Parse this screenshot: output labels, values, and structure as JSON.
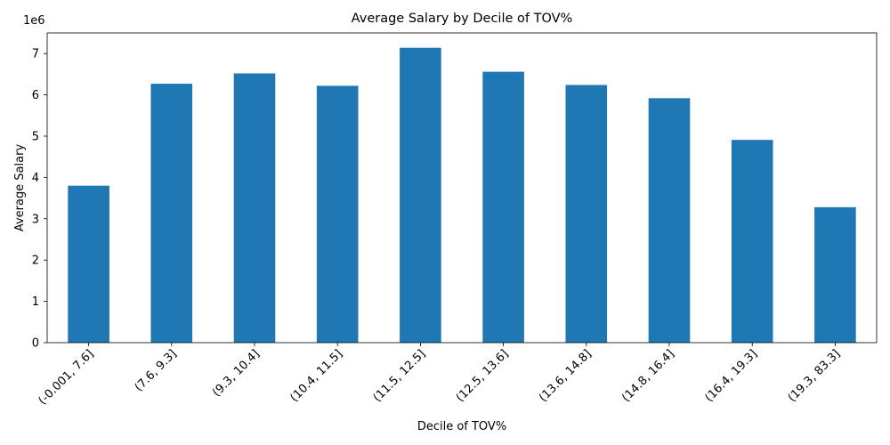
{
  "chart_data": {
    "type": "bar",
    "title": "Average Salary by Decile of TOV%",
    "xlabel": "Decile of TOV%",
    "ylabel": "Average Salary",
    "offset_label": "1e6",
    "categories": [
      "(-0.001, 7.6]",
      "(7.6, 9.3]",
      "(9.3, 10.4]",
      "(10.4, 11.5]",
      "(11.5, 12.5]",
      "(12.5, 13.6]",
      "(13.6, 14.8]",
      "(14.8, 16.4]",
      "(16.4, 19.3]",
      "(19.3, 83.3]"
    ],
    "values": [
      3800000,
      6270000,
      6520000,
      6220000,
      7140000,
      6560000,
      6240000,
      5920000,
      4910000,
      3280000
    ],
    "ylim": [
      0,
      7500000
    ],
    "yticks": [
      0,
      1,
      2,
      3,
      4,
      5,
      6,
      7
    ],
    "grid": false,
    "bar_color": "#1f77b4"
  }
}
